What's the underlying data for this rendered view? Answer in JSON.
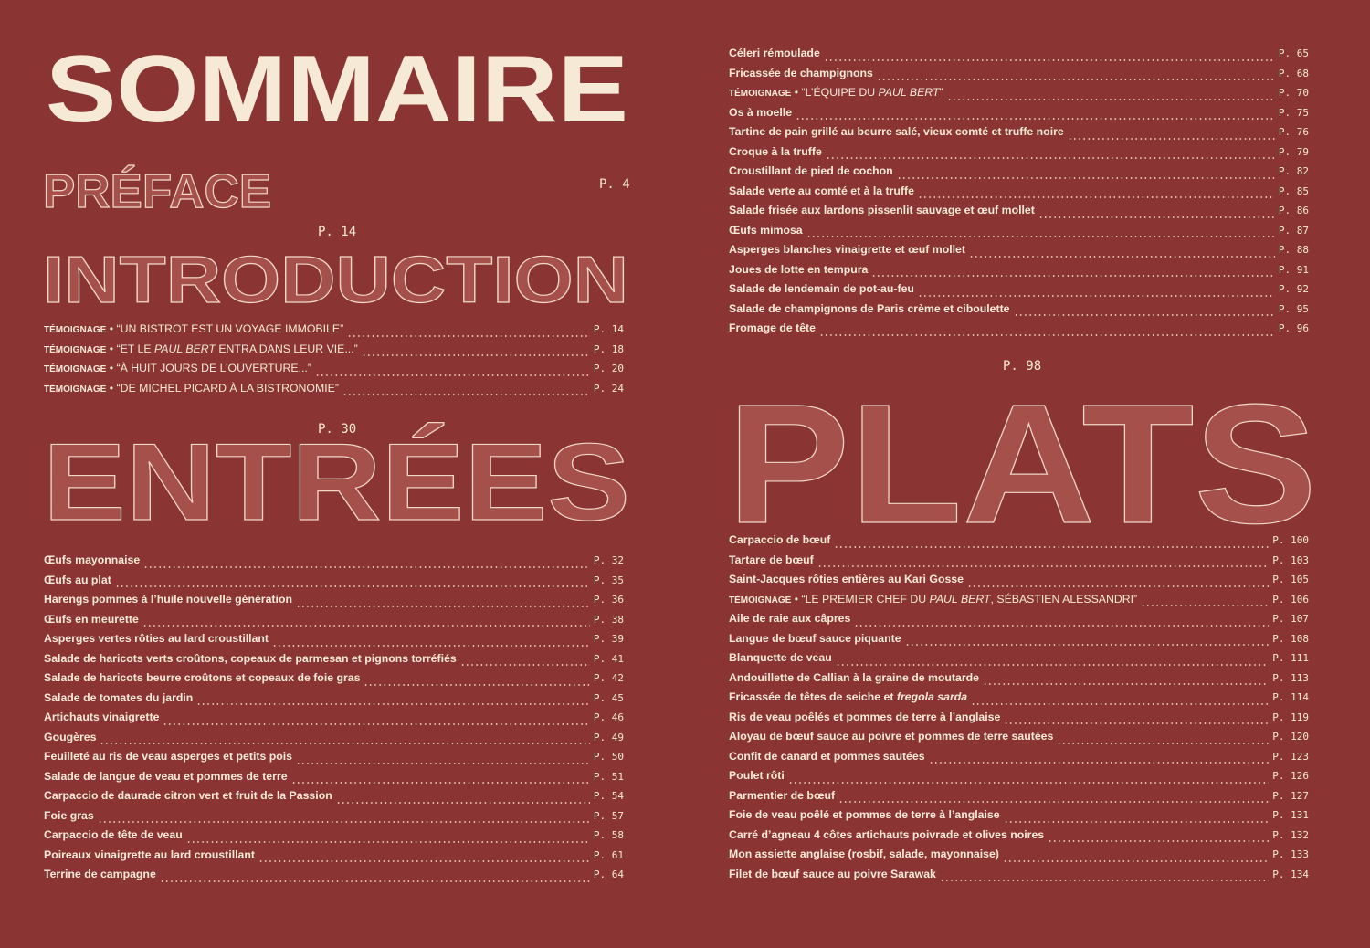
{
  "colors": {
    "background": "#8a3533",
    "text": "#f6ead6"
  },
  "title": "SOMMAIRE",
  "preface": {
    "title": "PRÉFACE",
    "page": "P. 4"
  },
  "introduction": {
    "title": "INTRODUCTION",
    "page": "P. 14",
    "entries": [
      {
        "parts": [
          {
            "t": "TÉMOIGNAGE",
            "s": "k"
          },
          {
            "t": " • “UN BISTROT EST UN VOYAGE IMMOBILE”",
            "s": "n"
          }
        ],
        "page": "P. 14"
      },
      {
        "parts": [
          {
            "t": "TÉMOIGNAGE",
            "s": "k"
          },
          {
            "t": " • “ET LE ",
            "s": "n"
          },
          {
            "t": "PAUL BERT",
            "s": "ni"
          },
          {
            "t": " ENTRA DANS LEUR VIE...”",
            "s": "n"
          }
        ],
        "page": "P. 18"
      },
      {
        "parts": [
          {
            "t": "TÉMOIGNAGE",
            "s": "k"
          },
          {
            "t": " • “À HUIT JOURS DE L’OUVERTURE...”",
            "s": "n"
          }
        ],
        "page": "P. 20"
      },
      {
        "parts": [
          {
            "t": "TÉMOIGNAGE",
            "s": "k"
          },
          {
            "t": " • “DE MICHEL PICARD À LA BISTRONOMIE”",
            "s": "n"
          }
        ],
        "page": "P. 24"
      }
    ]
  },
  "entrees": {
    "title": "ENTRÉES",
    "page": "P. 30",
    "entries": [
      {
        "parts": [
          {
            "t": "Œufs mayonnaise"
          }
        ],
        "page": "P. 32"
      },
      {
        "parts": [
          {
            "t": "Œufs au plat"
          }
        ],
        "page": "P. 35"
      },
      {
        "parts": [
          {
            "t": "Harengs pommes à l’huile nouvelle génération"
          }
        ],
        "page": "P. 36"
      },
      {
        "parts": [
          {
            "t": "Œufs en meurette"
          }
        ],
        "page": "P. 38"
      },
      {
        "parts": [
          {
            "t": "Asperges vertes rôties au lard croustillant"
          }
        ],
        "page": "P. 39"
      },
      {
        "parts": [
          {
            "t": "Salade de haricots verts croûtons, copeaux de parmesan et pignons torréfiés"
          }
        ],
        "page": "P. 41"
      },
      {
        "parts": [
          {
            "t": "Salade de haricots beurre croûtons et copeaux de foie gras"
          }
        ],
        "page": "P. 42"
      },
      {
        "parts": [
          {
            "t": "Salade de tomates du jardin"
          }
        ],
        "page": "P. 45"
      },
      {
        "parts": [
          {
            "t": "Artichauts vinaigrette"
          }
        ],
        "page": "P. 46"
      },
      {
        "parts": [
          {
            "t": "Gougères"
          }
        ],
        "page": "P. 49"
      },
      {
        "parts": [
          {
            "t": "Feuilleté au ris de veau asperges et petits pois"
          }
        ],
        "page": "P. 50"
      },
      {
        "parts": [
          {
            "t": "Salade de langue de veau et pommes de terre"
          }
        ],
        "page": "P. 51"
      },
      {
        "parts": [
          {
            "t": "Carpaccio de daurade citron vert et fruit de la Passion"
          }
        ],
        "page": "P. 54"
      },
      {
        "parts": [
          {
            "t": "Foie gras"
          }
        ],
        "page": "P. 57"
      },
      {
        "parts": [
          {
            "t": "Carpaccio de tête de veau"
          }
        ],
        "page": "P. 58"
      },
      {
        "parts": [
          {
            "t": "Poireaux vinaigrette au lard croustillant"
          }
        ],
        "page": "P. 61"
      },
      {
        "parts": [
          {
            "t": "Terrine de campagne"
          }
        ],
        "page": "P. 64"
      }
    ]
  },
  "entrees_continued": {
    "entries": [
      {
        "parts": [
          {
            "t": "Céleri rémoulade"
          }
        ],
        "page": "P. 65"
      },
      {
        "parts": [
          {
            "t": "Fricassée de champignons"
          }
        ],
        "page": "P. 68"
      },
      {
        "parts": [
          {
            "t": "TÉMOIGNAGE",
            "s": "k"
          },
          {
            "t": " • “L’ÉQUIPE DU ",
            "s": "n"
          },
          {
            "t": "PAUL BERT",
            "s": "ni"
          },
          {
            "t": "”",
            "s": "n"
          }
        ],
        "page": "P. 70"
      },
      {
        "parts": [
          {
            "t": "Os à moelle"
          }
        ],
        "page": "P. 75"
      },
      {
        "parts": [
          {
            "t": "Tartine de pain grillé au beurre salé, vieux comté et truffe noire"
          }
        ],
        "page": "P. 76"
      },
      {
        "parts": [
          {
            "t": "Croque à la truffe"
          }
        ],
        "page": "P. 79"
      },
      {
        "parts": [
          {
            "t": "Croustillant de pied de cochon"
          }
        ],
        "page": "P. 82"
      },
      {
        "parts": [
          {
            "t": "Salade verte au comté et à la truffe"
          }
        ],
        "page": "P. 85"
      },
      {
        "parts": [
          {
            "t": "Salade frisée aux lardons pissenlit sauvage et œuf mollet"
          }
        ],
        "page": "P. 86"
      },
      {
        "parts": [
          {
            "t": "Œufs mimosa"
          }
        ],
        "page": "P. 87"
      },
      {
        "parts": [
          {
            "t": "Asperges blanches vinaigrette et œuf mollet"
          }
        ],
        "page": "P. 88"
      },
      {
        "parts": [
          {
            "t": "Joues de lotte en tempura"
          }
        ],
        "page": "P. 91"
      },
      {
        "parts": [
          {
            "t": "Salade de lendemain de pot-au-feu"
          }
        ],
        "page": "P. 92"
      },
      {
        "parts": [
          {
            "t": "Salade de champignons de Paris crème et ciboulette"
          }
        ],
        "page": "P. 95"
      },
      {
        "parts": [
          {
            "t": "Fromage de tête"
          }
        ],
        "page": "P. 96"
      }
    ]
  },
  "plats": {
    "title": "PLATS",
    "page": "P. 98",
    "entries": [
      {
        "parts": [
          {
            "t": "Carpaccio de bœuf"
          }
        ],
        "page": "P. 100"
      },
      {
        "parts": [
          {
            "t": "Tartare de bœuf"
          }
        ],
        "page": "P. 103"
      },
      {
        "parts": [
          {
            "t": "Saint-Jacques rôties entières au Kari Gosse"
          }
        ],
        "page": "P. 105"
      },
      {
        "parts": [
          {
            "t": "TÉMOIGNAGE",
            "s": "k"
          },
          {
            "t": " • “LE PREMIER CHEF DU ",
            "s": "n"
          },
          {
            "t": "PAUL BERT",
            "s": "ni"
          },
          {
            "t": ", SÉBASTIEN ALESSANDRI”",
            "s": "n"
          }
        ],
        "page": "P. 106"
      },
      {
        "parts": [
          {
            "t": "Aile de raie aux câpres"
          }
        ],
        "page": "P. 107"
      },
      {
        "parts": [
          {
            "t": "Langue de bœuf sauce piquante"
          }
        ],
        "page": "P. 108"
      },
      {
        "parts": [
          {
            "t": "Blanquette de veau"
          }
        ],
        "page": "P. 111"
      },
      {
        "parts": [
          {
            "t": "Andouillette de Callian à la graine de moutarde"
          }
        ],
        "page": "P. 113"
      },
      {
        "parts": [
          {
            "t": "Fricassée de têtes de seiche et "
          },
          {
            "t": "fregola sarda",
            "s": "i"
          }
        ],
        "page": "P. 114"
      },
      {
        "parts": [
          {
            "t": "Ris de veau poêlés et pommes de terre à l’anglaise"
          }
        ],
        "page": "P. 119"
      },
      {
        "parts": [
          {
            "t": "Aloyau de bœuf sauce au poivre et pommes de terre sautées"
          }
        ],
        "page": "P. 120"
      },
      {
        "parts": [
          {
            "t": "Confit de canard et pommes sautées"
          }
        ],
        "page": "P. 123"
      },
      {
        "parts": [
          {
            "t": "Poulet rôti"
          }
        ],
        "page": "P. 126"
      },
      {
        "parts": [
          {
            "t": "Parmentier de bœuf"
          }
        ],
        "page": "P. 127"
      },
      {
        "parts": [
          {
            "t": "Foie de veau poêlé et pommes de terre à l’anglaise"
          }
        ],
        "page": "P. 131"
      },
      {
        "parts": [
          {
            "t": "Carré d’agneau 4 côtes artichauts poivrade et olives noires"
          }
        ],
        "page": "P. 132"
      },
      {
        "parts": [
          {
            "t": "Mon assiette anglaise (rosbif, salade, mayonnaise)"
          }
        ],
        "page": "P. 133"
      },
      {
        "parts": [
          {
            "t": "Filet de bœuf sauce au poivre Sarawak"
          }
        ],
        "page": "P. 134"
      }
    ]
  }
}
